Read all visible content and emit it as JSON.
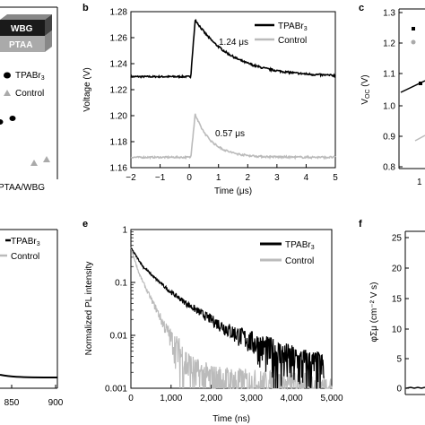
{
  "panels": {
    "b": "b",
    "c": "c",
    "e": "e",
    "f": "f"
  },
  "panel_a": {
    "layer_top": "WBG",
    "layer_bottom": "PTAA",
    "legend": [
      "TPABr3",
      "Control"
    ],
    "xlabel_partial": "PTAA/WBG"
  },
  "panel_c": {
    "ylabel": "V_OC (V)",
    "ytick_labels": [
      "1.3",
      "1.2",
      "1.1",
      "1.0",
      "0.9",
      "0.8"
    ],
    "xtick_partial": "1"
  },
  "panel_d": {
    "legend": [
      "TPABr3",
      "Control"
    ],
    "xtick_labels": [
      "850",
      "900"
    ]
  },
  "panel_f": {
    "ylabel": "φΣμ (cm⁻² V s)",
    "ytick_labels": [
      "25",
      "20",
      "15",
      "10",
      "5",
      "0"
    ]
  },
  "chart_data": [
    {
      "type": "line",
      "panel": "b",
      "xlabel": "Time (μs)",
      "ylabel": "Voltage (V)",
      "xlim": [
        -2,
        5
      ],
      "ylim": [
        1.16,
        1.28
      ],
      "xticks": [
        -2,
        -1,
        0,
        1,
        2,
        3,
        4,
        5
      ],
      "xtick_labels": [
        "−2",
        "−1",
        "0",
        "1",
        "2",
        "3",
        "4",
        "5"
      ],
      "yticks": [
        1.16,
        1.18,
        1.2,
        1.22,
        1.24,
        1.26,
        1.28
      ],
      "ytick_labels": [
        "1.16",
        "1.18",
        "1.20",
        "1.22",
        "1.24",
        "1.26",
        "1.28"
      ],
      "legend_placement": "top-right",
      "annotations": [
        "1.24 μs",
        "0.57 μs"
      ],
      "series": [
        {
          "name": "TPABr3",
          "color": "#000000",
          "baseline": 1.23,
          "peak": 1.274,
          "tau": 1.24
        },
        {
          "name": "Control",
          "color": "#bbbbbb",
          "baseline": 1.168,
          "peak": 1.201,
          "tau": 0.57
        }
      ]
    },
    {
      "type": "line",
      "panel": "e",
      "xlabel": "Time (ns)",
      "ylabel": "Normalized PL intensity",
      "yscale": "log",
      "xlim": [
        0,
        5000
      ],
      "ylim": [
        0.001,
        1
      ],
      "xticks": [
        0,
        1000,
        2000,
        3000,
        4000,
        5000
      ],
      "xtick_labels": [
        "0",
        "1,000",
        "2,000",
        "3,000",
        "4,000",
        "5,000"
      ],
      "yticks": [
        0.001,
        0.01,
        0.1,
        1
      ],
      "ytick_labels": [
        "0.001",
        "0.01",
        "0.1",
        "1"
      ],
      "legend_placement": "top-right",
      "series": [
        {
          "name": "TPABr3",
          "color": "#000000",
          "x": [
            0,
            300,
            600,
            1000,
            1500,
            2000,
            2500,
            3000,
            3500,
            4000,
            4500,
            4800
          ],
          "y": [
            0.45,
            0.2,
            0.12,
            0.065,
            0.035,
            0.02,
            0.012,
            0.008,
            0.005,
            0.0035,
            0.0028,
            0.0025
          ]
        },
        {
          "name": "Control",
          "color": "#bbbbbb",
          "x": [
            0,
            200,
            400,
            600,
            800,
            1000,
            1200,
            1400,
            1600,
            2000,
            3000,
            4000,
            5000
          ],
          "y": [
            0.45,
            0.15,
            0.07,
            0.035,
            0.017,
            0.009,
            0.005,
            0.003,
            0.002,
            0.0015,
            0.0012,
            0.0011,
            0.001
          ]
        }
      ]
    }
  ]
}
